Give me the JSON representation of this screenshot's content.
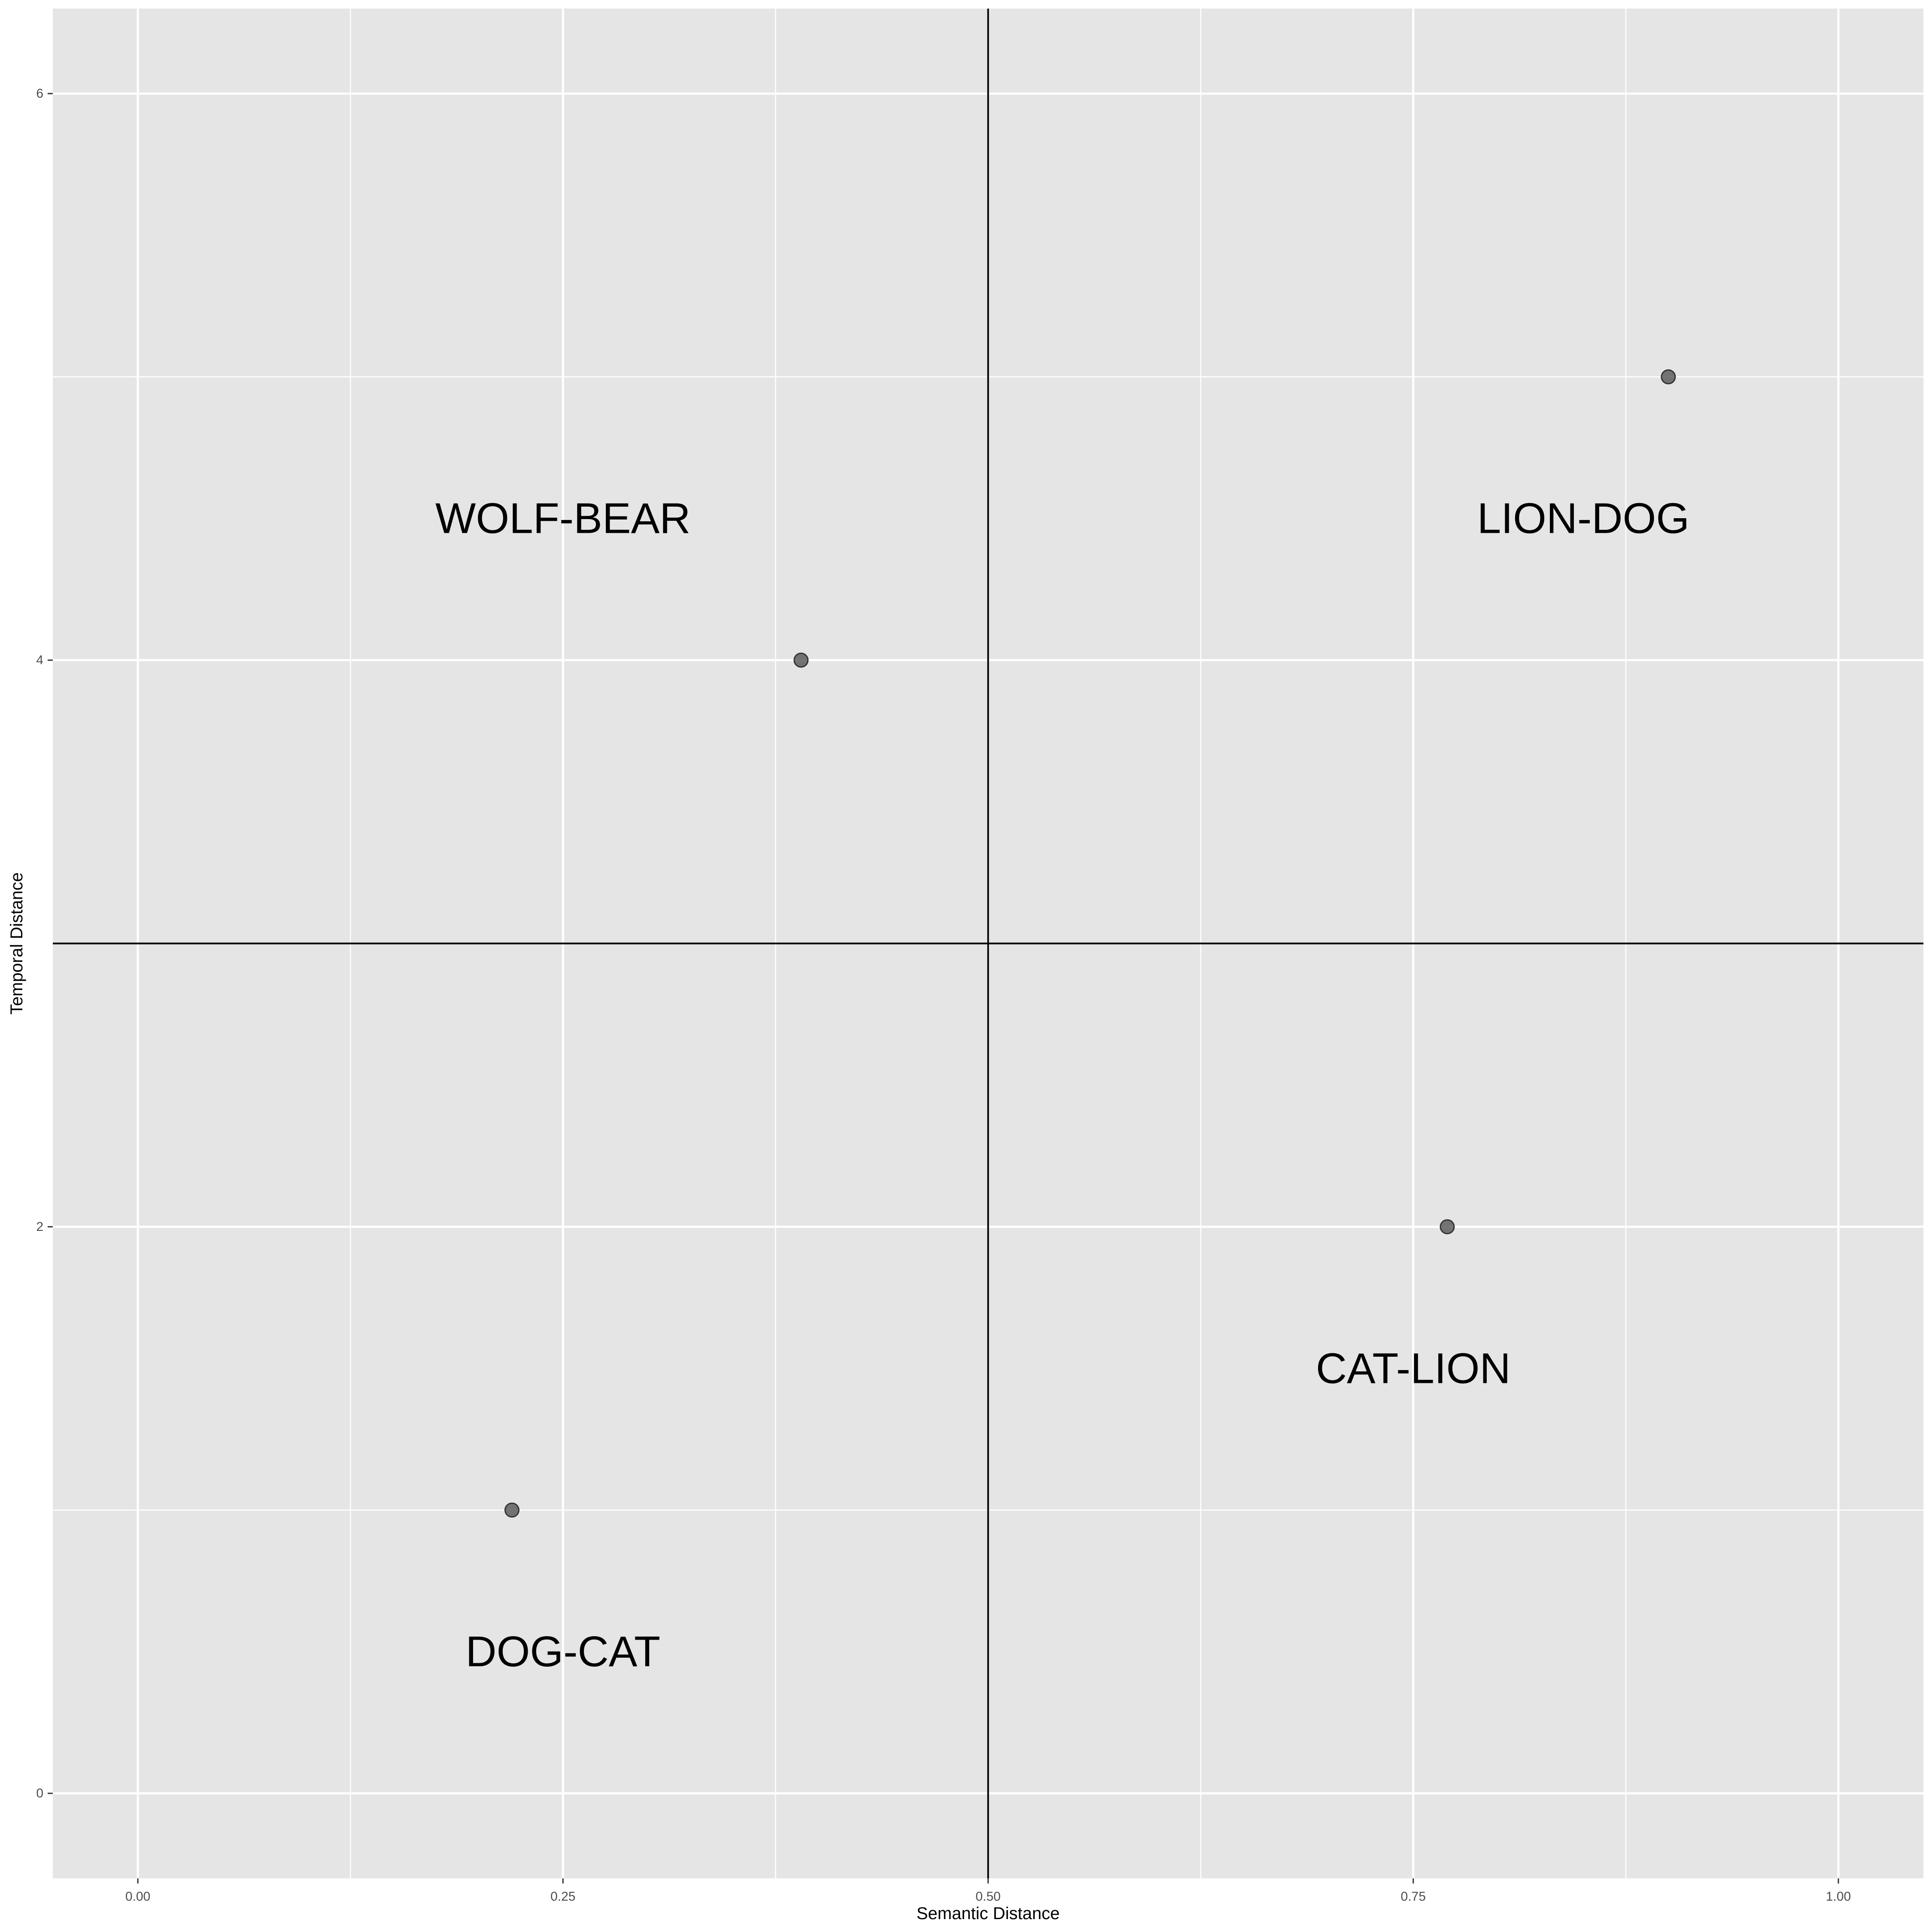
{
  "chart_data": {
    "type": "scatter",
    "title": "",
    "xlabel": "Semantic Distance",
    "ylabel": "Temporal Distance",
    "xlim": [
      -0.05,
      1.05
    ],
    "ylim": [
      -0.3,
      6.3
    ],
    "x_ticks": [
      0.0,
      0.25,
      0.5,
      0.75,
      1.0
    ],
    "x_tick_labels": [
      "0.00",
      "0.25",
      "0.50",
      "0.75",
      "1.00"
    ],
    "x_minor_ticks": [
      0.125,
      0.375,
      0.625,
      0.875
    ],
    "y_ticks": [
      0,
      2,
      4,
      6
    ],
    "y_tick_labels": [
      "0",
      "2",
      "4",
      "6"
    ],
    "y_minor_ticks": [
      1,
      3,
      5
    ],
    "grid": true,
    "panel_background": "#e5e5e5",
    "grid_color": "#ffffff",
    "point_color": "#555555",
    "reference_lines": {
      "vline_x": 0.5,
      "hline_y": 3,
      "color": "#000000"
    },
    "points": [
      {
        "x": 0.22,
        "y": 1
      },
      {
        "x": 0.39,
        "y": 4
      },
      {
        "x": 0.77,
        "y": 2
      },
      {
        "x": 0.9,
        "y": 5
      }
    ],
    "annotations": [
      {
        "text": "WOLF-BEAR",
        "x": 0.25,
        "y": 4.5
      },
      {
        "text": "LION-DOG",
        "x": 0.85,
        "y": 4.5
      },
      {
        "text": "CAT-LION",
        "x": 0.75,
        "y": 1.5
      },
      {
        "text": "DOG-CAT",
        "x": 0.25,
        "y": 0.5
      }
    ]
  }
}
